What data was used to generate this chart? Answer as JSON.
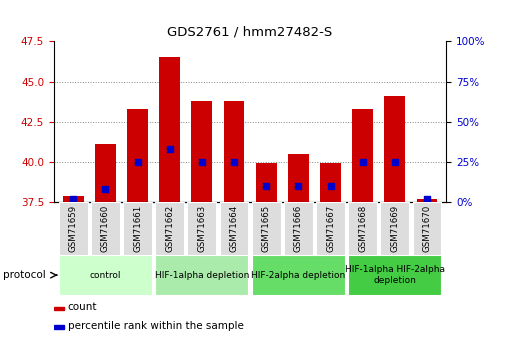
{
  "title": "GDS2761 / hmm27482-S",
  "samples": [
    "GSM71659",
    "GSM71660",
    "GSM71661",
    "GSM71662",
    "GSM71663",
    "GSM71664",
    "GSM71665",
    "GSM71666",
    "GSM71667",
    "GSM71668",
    "GSM71669",
    "GSM71670"
  ],
  "counts": [
    37.85,
    41.1,
    43.3,
    46.5,
    43.8,
    43.8,
    39.95,
    40.45,
    39.95,
    43.3,
    44.1,
    37.65
  ],
  "percentile_ranks": [
    1.5,
    8.0,
    25.0,
    33.0,
    25.0,
    25.0,
    10.0,
    10.0,
    10.0,
    25.0,
    25.0,
    1.5
  ],
  "bar_color": "#cc0000",
  "dot_color": "#0000cc",
  "ylim_left": [
    37.5,
    47.5
  ],
  "ylim_right": [
    0,
    100
  ],
  "yticks_left": [
    37.5,
    40.0,
    42.5,
    45.0,
    47.5
  ],
  "yticks_right": [
    0,
    25,
    50,
    75,
    100
  ],
  "ytick_labels_right": [
    "0%",
    "25%",
    "50%",
    "75%",
    "100%"
  ],
  "bar_bottom": 37.5,
  "grid_color": "#888888",
  "group_boundaries": [
    {
      "start": 0,
      "end": 2,
      "label": "control",
      "color": "#ccffcc"
    },
    {
      "start": 3,
      "end": 5,
      "label": "HIF-1alpha depletion",
      "color": "#aaeaaa"
    },
    {
      "start": 6,
      "end": 8,
      "label": "HIF-2alpha depletion",
      "color": "#66dd66"
    },
    {
      "start": 9,
      "end": 11,
      "label": "HIF-1alpha HIF-2alpha\ndepletion",
      "color": "#44cc44"
    }
  ],
  "bg_color": "#ffffff",
  "sample_box_color": "#dddddd",
  "tick_color_left": "#cc0000",
  "tick_color_right": "#0000cc",
  "bar_width": 0.65,
  "legend_count": "count",
  "legend_pct": "percentile rank within the sample",
  "protocol_label": "protocol"
}
